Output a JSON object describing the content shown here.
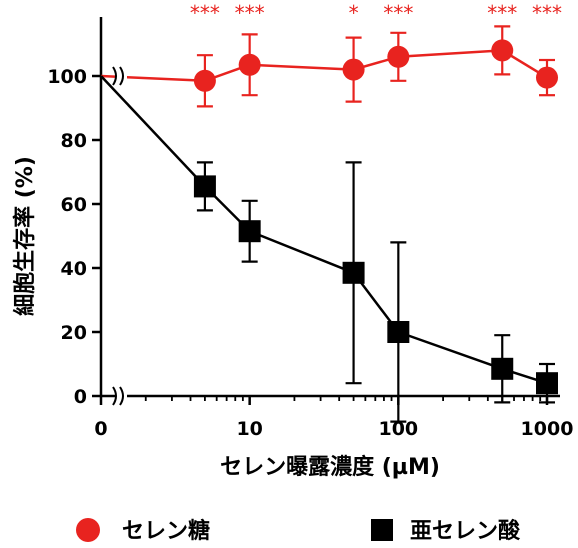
{
  "chart_data": {
    "type": "line",
    "xlabel": "セレン曝露濃度 (µM)",
    "ylabel": "細胞生存率 (%)",
    "x_scale": "log",
    "x_break": true,
    "y_break": true,
    "ylim": [
      0,
      110
    ],
    "x_ticks": [
      {
        "value": 0,
        "label": "0"
      },
      {
        "value": 10,
        "label": "10"
      },
      {
        "value": 100,
        "label": "100"
      },
      {
        "value": 1000,
        "label": "1000"
      }
    ],
    "y_ticks": [
      {
        "value": 0,
        "label": "0"
      },
      {
        "value": 20,
        "label": "20"
      },
      {
        "value": 40,
        "label": "40"
      },
      {
        "value": 60,
        "label": "60"
      },
      {
        "value": 80,
        "label": "80"
      },
      {
        "value": 100,
        "label": "100"
      }
    ],
    "series": [
      {
        "name": "セレン糖",
        "color": "#e8231f",
        "marker": "circle",
        "points": [
          {
            "x": 0,
            "y": 100
          },
          {
            "x": 5,
            "y": 98.5,
            "err": 8,
            "sig": "***"
          },
          {
            "x": 10,
            "y": 103.5,
            "err": 9.5,
            "sig": "***"
          },
          {
            "x": 50,
            "y": 102,
            "err": 10,
            "sig": "*"
          },
          {
            "x": 100,
            "y": 106,
            "err": 7.5,
            "sig": "***"
          },
          {
            "x": 500,
            "y": 108,
            "err": 7.5,
            "sig": "***"
          },
          {
            "x": 1000,
            "y": 99.5,
            "err": 5.5,
            "sig": "***"
          }
        ]
      },
      {
        "name": "亜セレン酸",
        "color": "#000000",
        "marker": "square",
        "points": [
          {
            "x": 0,
            "y": 100
          },
          {
            "x": 5,
            "y": 65.5,
            "err": 7.5
          },
          {
            "x": 10,
            "y": 51.5,
            "err": 9.5
          },
          {
            "x": 50,
            "y": 38.5,
            "err": 34.5
          },
          {
            "x": 100,
            "y": 20,
            "err": 28
          },
          {
            "x": 500,
            "y": 8.5,
            "err": 10.5
          },
          {
            "x": 1000,
            "y": 4,
            "err": 6
          }
        ]
      }
    ],
    "legend": {
      "placement": "bottom",
      "items": [
        {
          "label": "セレン糖",
          "color": "#e8231f",
          "marker": "circle"
        },
        {
          "label": "亜セレン酸",
          "color": "#000000",
          "marker": "square"
        }
      ]
    }
  }
}
